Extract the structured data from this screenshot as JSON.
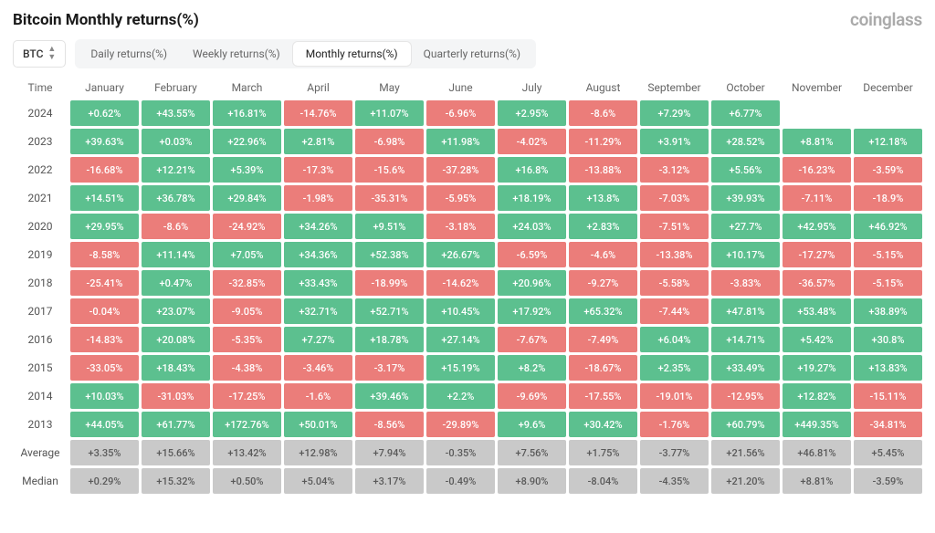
{
  "title": "Bitcoin Monthly returns(%)",
  "brand": "coinglass",
  "asset_selector": {
    "label": "BTC"
  },
  "tabs": [
    {
      "label": "Daily returns(%)",
      "active": false
    },
    {
      "label": "Weekly returns(%)",
      "active": false
    },
    {
      "label": "Monthly returns(%)",
      "active": true
    },
    {
      "label": "Quarterly returns(%)",
      "active": false
    }
  ],
  "table": {
    "time_header": "Time",
    "months": [
      "January",
      "February",
      "March",
      "April",
      "May",
      "June",
      "July",
      "August",
      "September",
      "October",
      "November",
      "December"
    ],
    "colors": {
      "positive_bg": "#5cc08f",
      "positive_fg": "#ffffff",
      "negative_bg": "#eb7d7a",
      "negative_fg": "#ffffff",
      "summary_bg": "#c9c9c9",
      "summary_fg": "#595959",
      "header_fg": "#666666",
      "rowlabel_fg": "#555555"
    },
    "rows": [
      {
        "label": "2024",
        "type": "data",
        "cells": [
          "+0.62%",
          "+43.55%",
          "+16.81%",
          "-14.76%",
          "+11.07%",
          "-6.96%",
          "+2.95%",
          "-8.6%",
          "+7.29%",
          "+6.77%",
          "",
          ""
        ]
      },
      {
        "label": "2023",
        "type": "data",
        "cells": [
          "+39.63%",
          "+0.03%",
          "+22.96%",
          "+2.81%",
          "-6.98%",
          "+11.98%",
          "-4.02%",
          "-11.29%",
          "+3.91%",
          "+28.52%",
          "+8.81%",
          "+12.18%"
        ]
      },
      {
        "label": "2022",
        "type": "data",
        "cells": [
          "-16.68%",
          "+12.21%",
          "+5.39%",
          "-17.3%",
          "-15.6%",
          "-37.28%",
          "+16.8%",
          "-13.88%",
          "-3.12%",
          "+5.56%",
          "-16.23%",
          "-3.59%"
        ]
      },
      {
        "label": "2021",
        "type": "data",
        "cells": [
          "+14.51%",
          "+36.78%",
          "+29.84%",
          "-1.98%",
          "-35.31%",
          "-5.95%",
          "+18.19%",
          "+13.8%",
          "-7.03%",
          "+39.93%",
          "-7.11%",
          "-18.9%"
        ]
      },
      {
        "label": "2020",
        "type": "data",
        "cells": [
          "+29.95%",
          "-8.6%",
          "-24.92%",
          "+34.26%",
          "+9.51%",
          "-3.18%",
          "+24.03%",
          "+2.83%",
          "-7.51%",
          "+27.7%",
          "+42.95%",
          "+46.92%"
        ]
      },
      {
        "label": "2019",
        "type": "data",
        "cells": [
          "-8.58%",
          "+11.14%",
          "+7.05%",
          "+34.36%",
          "+52.38%",
          "+26.67%",
          "-6.59%",
          "-4.6%",
          "-13.38%",
          "+10.17%",
          "-17.27%",
          "-5.15%"
        ]
      },
      {
        "label": "2018",
        "type": "data",
        "cells": [
          "-25.41%",
          "+0.47%",
          "-32.85%",
          "+33.43%",
          "-18.99%",
          "-14.62%",
          "+20.96%",
          "-9.27%",
          "-5.58%",
          "-3.83%",
          "-36.57%",
          "-5.15%"
        ]
      },
      {
        "label": "2017",
        "type": "data",
        "cells": [
          "-0.04%",
          "+23.07%",
          "-9.05%",
          "+32.71%",
          "+52.71%",
          "+10.45%",
          "+17.92%",
          "+65.32%",
          "-7.44%",
          "+47.81%",
          "+53.48%",
          "+38.89%"
        ]
      },
      {
        "label": "2016",
        "type": "data",
        "cells": [
          "-14.83%",
          "+20.08%",
          "-5.35%",
          "+7.27%",
          "+18.78%",
          "+27.14%",
          "-7.67%",
          "-7.49%",
          "+6.04%",
          "+14.71%",
          "+5.42%",
          "+30.8%"
        ]
      },
      {
        "label": "2015",
        "type": "data",
        "cells": [
          "-33.05%",
          "+18.43%",
          "-4.38%",
          "-3.46%",
          "-3.17%",
          "+15.19%",
          "+8.2%",
          "-18.67%",
          "+2.35%",
          "+33.49%",
          "+19.27%",
          "+13.83%"
        ]
      },
      {
        "label": "2014",
        "type": "data",
        "cells": [
          "+10.03%",
          "-31.03%",
          "-17.25%",
          "-1.6%",
          "+39.46%",
          "+2.2%",
          "-9.69%",
          "-17.55%",
          "-19.01%",
          "-12.95%",
          "+12.82%",
          "-15.11%"
        ]
      },
      {
        "label": "2013",
        "type": "data",
        "cells": [
          "+44.05%",
          "+61.77%",
          "+172.76%",
          "+50.01%",
          "-8.56%",
          "-29.89%",
          "+9.6%",
          "+30.42%",
          "-1.76%",
          "+60.79%",
          "+449.35%",
          "-34.81%"
        ]
      },
      {
        "label": "Average",
        "type": "summary",
        "cells": [
          "+3.35%",
          "+15.66%",
          "+13.42%",
          "+12.98%",
          "+7.94%",
          "-0.35%",
          "+7.56%",
          "+1.75%",
          "-3.77%",
          "+21.56%",
          "+46.81%",
          "+5.45%"
        ]
      },
      {
        "label": "Median",
        "type": "summary",
        "cells": [
          "+0.29%",
          "+15.32%",
          "+0.50%",
          "+5.04%",
          "+3.17%",
          "-0.49%",
          "+8.90%",
          "-8.04%",
          "-4.35%",
          "+21.20%",
          "+8.81%",
          "-3.59%"
        ]
      }
    ]
  }
}
